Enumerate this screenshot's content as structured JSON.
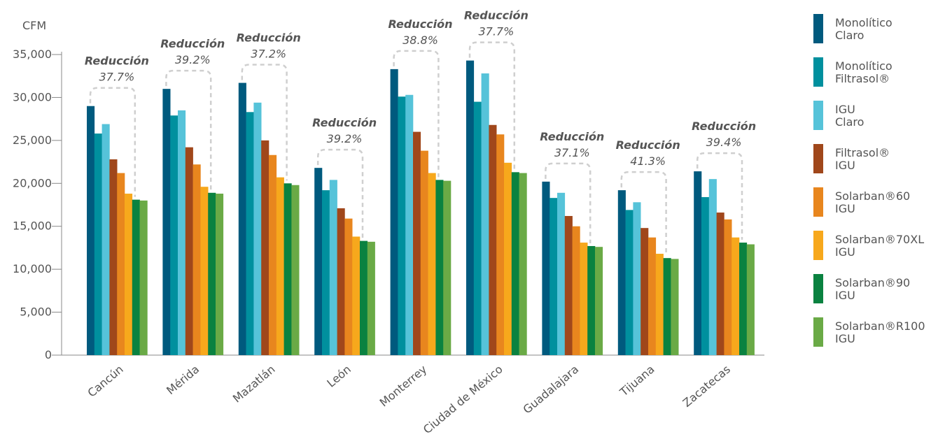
{
  "chart_data": {
    "type": "bar",
    "title": "",
    "xlabel": "",
    "ylabel": "CFM",
    "ylim": [
      0,
      35000
    ],
    "yticks": [
      "0",
      "5,000",
      "10,000",
      "15,000",
      "20,000",
      "25,000",
      "30,000",
      "35,000"
    ],
    "ytick_values": [
      0,
      5000,
      10000,
      15000,
      20000,
      25000,
      30000,
      35000
    ],
    "grid": false,
    "legend_position": "right",
    "categories": [
      "Cancún",
      "Mérida",
      "Mazatlán",
      "León",
      "Monterrey",
      "Ciudad de México",
      "Guadalajara",
      "Tijuana",
      "Zacatecas"
    ],
    "series": [
      {
        "name": [
          "Monolítico",
          "Claro"
        ],
        "color": "#005a7e",
        "values": [
          29000,
          31000,
          31700,
          21800,
          33300,
          34300,
          20200,
          19200,
          21400
        ]
      },
      {
        "name": [
          "Monolítico",
          "Filtrasol®"
        ],
        "color": "#00909e",
        "values": [
          25800,
          27900,
          28300,
          19200,
          30100,
          29500,
          18300,
          16900,
          18400
        ]
      },
      {
        "name": [
          "IGU",
          "Claro"
        ],
        "color": "#56c3d9",
        "values": [
          26900,
          28500,
          29400,
          20400,
          30300,
          32800,
          18900,
          17800,
          20500
        ]
      },
      {
        "name": [
          "Filtrasol®",
          "IGU"
        ],
        "color": "#a0471b",
        "values": [
          22800,
          24200,
          25000,
          17100,
          26000,
          26800,
          16200,
          14800,
          16600
        ]
      },
      {
        "name": [
          "Solarban®60",
          "IGU"
        ],
        "color": "#e8861e",
        "values": [
          21200,
          22200,
          23300,
          15900,
          23800,
          25700,
          15000,
          13700,
          15800
        ]
      },
      {
        "name": [
          "Solarban®70XL",
          "IGU"
        ],
        "color": "#f7a81c",
        "values": [
          18800,
          19600,
          20700,
          13800,
          21200,
          22400,
          13100,
          11800,
          13700
        ]
      },
      {
        "name": [
          "Solarban®90",
          "IGU"
        ],
        "color": "#0a8240",
        "values": [
          18100,
          18900,
          20000,
          13300,
          20400,
          21300,
          12700,
          11300,
          13100
        ]
      },
      {
        "name": [
          "Solarban®R100",
          "IGU"
        ],
        "color": "#6aaa46",
        "values": [
          18000,
          18800,
          19800,
          13200,
          20300,
          21200,
          12600,
          11200,
          12900
        ]
      }
    ],
    "annotations": [
      {
        "label": "Reducción",
        "value": "37.7%"
      },
      {
        "label": "Reducción",
        "value": "39.2%"
      },
      {
        "label": "Reducción",
        "value": "37.2%"
      },
      {
        "label": "Reducción",
        "value": "39.2%"
      },
      {
        "label": "Reducción",
        "value": "38.8%"
      },
      {
        "label": "Reducción",
        "value": "37.7%"
      },
      {
        "label": "Reducción",
        "value": "37.1%"
      },
      {
        "label": "Reducción",
        "value": "41.3%"
      },
      {
        "label": "Reducción",
        "value": "39.4%"
      }
    ]
  }
}
